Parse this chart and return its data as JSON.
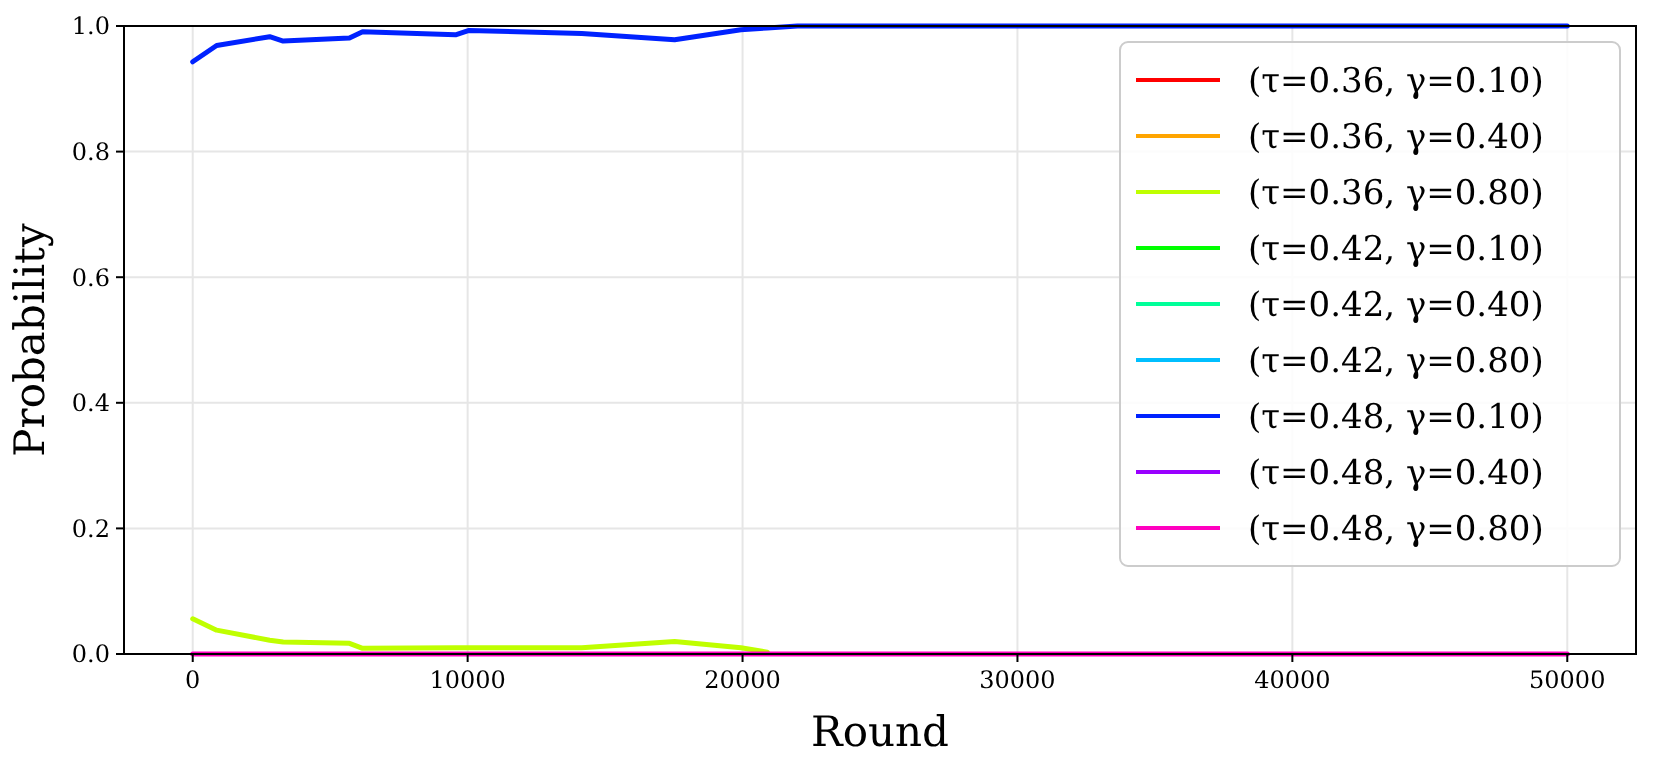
{
  "chart_data": {
    "type": "line",
    "xlabel": "Round",
    "ylabel": "Probability",
    "xlim": [
      -2500,
      52500
    ],
    "xticks": [
      0,
      10000,
      20000,
      30000,
      40000,
      50000
    ],
    "ylim": [
      0,
      1
    ],
    "yticks": [
      {
        "value": 0,
        "label": "0.0"
      },
      {
        "value": 0.2,
        "label": "0.2"
      },
      {
        "value": 0.4,
        "label": "0.4"
      },
      {
        "value": 0.6,
        "label": "0.6"
      },
      {
        "value": 0.8,
        "label": "0.8"
      },
      {
        "value": 1,
        "label": "1.0"
      }
    ],
    "grid": true,
    "legend": "top right",
    "marker": "none",
    "line_style": "solid",
    "x": [
      0,
      870,
      2800,
      3290,
      5700,
      6180,
      9560,
      10050,
      14150,
      17530,
      19940,
      20900,
      22000,
      30000,
      40000,
      50000
    ],
    "series": [
      {
        "name": "(τ=0.36, γ=0.10)",
        "color": "#ff0000",
        "values": [
          null,
          null,
          null,
          null,
          null,
          null,
          null,
          null,
          null,
          null,
          null,
          null,
          null,
          null,
          null,
          null
        ]
      },
      {
        "name": "(τ=0.36, γ=0.40)",
        "color": "#ffa500",
        "values": [
          null,
          null,
          null,
          null,
          null,
          null,
          null,
          null,
          null,
          null,
          null,
          null,
          null,
          null,
          null,
          null
        ]
      },
      {
        "name": "(τ=0.36, γ=0.80)",
        "color": "#bfff00",
        "values": [
          0.056,
          0.038,
          0.022,
          0.019,
          0.017,
          0.009,
          0.01,
          0.01,
          0.01,
          0.02,
          0.01,
          0.003,
          null,
          null,
          null,
          null
        ]
      },
      {
        "name": "(τ=0.42, γ=0.10)",
        "color": "#00ff00",
        "values": [
          null,
          null,
          null,
          null,
          null,
          null,
          null,
          null,
          null,
          null,
          null,
          null,
          null,
          null,
          null,
          null
        ]
      },
      {
        "name": "(τ=0.42, γ=0.40)",
        "color": "#00ff99",
        "values": [
          null,
          null,
          null,
          null,
          null,
          null,
          null,
          null,
          null,
          null,
          null,
          null,
          null,
          null,
          null,
          null
        ]
      },
      {
        "name": "(τ=0.42, γ=0.80)",
        "color": "#00bfff",
        "values": [
          null,
          null,
          null,
          null,
          null,
          null,
          null,
          null,
          null,
          null,
          null,
          null,
          null,
          null,
          null,
          null
        ]
      },
      {
        "name": "(τ=0.48, γ=0.10)",
        "color": "#0022ff",
        "values": [
          0.943,
          0.969,
          0.983,
          0.976,
          0.981,
          0.991,
          0.986,
          0.993,
          0.988,
          0.978,
          0.994,
          0.997,
          1,
          1,
          1,
          1
        ]
      },
      {
        "name": "(τ=0.48, γ=0.40)",
        "color": "#9900ff",
        "values": [
          null,
          null,
          null,
          null,
          null,
          null,
          null,
          null,
          null,
          null,
          null,
          null,
          null,
          null,
          null,
          null
        ]
      },
      {
        "name": "(τ=0.48, γ=0.80)",
        "color": "#ff00bf",
        "values": [
          0,
          0,
          0,
          0,
          0,
          0,
          0,
          0,
          0,
          0,
          0,
          0,
          0,
          0,
          0,
          0
        ]
      }
    ]
  }
}
